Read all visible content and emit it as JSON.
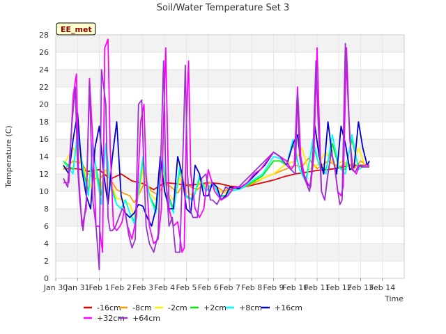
{
  "chart_data": {
    "type": "line",
    "title": "Soil/Water Temperature Set 3",
    "badge": "EE_met",
    "xlabel": "Time",
    "ylabel": "Temperature (C)",
    "xlim": [
      0,
      16
    ],
    "ylim": [
      0,
      28
    ],
    "x_tick_labels": [
      "Jan 30",
      "Jan 31",
      "Feb 1",
      "Feb 2",
      "Feb 3",
      "Feb 4",
      "Feb 5",
      "Feb 6",
      "Feb 7",
      "Feb 8",
      "Feb 9",
      "Feb 10",
      "Feb 11",
      "Feb 12",
      "Feb 13",
      "Feb 14"
    ],
    "y_ticks": [
      0,
      2,
      4,
      6,
      8,
      10,
      12,
      14,
      16,
      18,
      20,
      22,
      24,
      26,
      28
    ],
    "grid": true,
    "legend_position": "bottom",
    "series": [
      {
        "name": "-16cm",
        "color": "#e00000",
        "x": [
          0.35,
          1.0,
          1.5,
          2.0,
          2.5,
          3.0,
          3.5,
          4.0,
          4.5,
          5.0,
          5.5,
          6.0,
          6.5,
          7.0,
          7.5,
          8.0,
          8.5,
          9.0,
          9.5,
          10.0,
          10.5,
          11.0,
          11.5,
          12.0,
          12.5,
          13.0,
          13.5,
          14.0,
          14.4
        ],
        "y": [
          12.6,
          12.6,
          12.3,
          12.5,
          11.4,
          12.0,
          11.2,
          10.9,
          10.2,
          11.0,
          10.9,
          10.7,
          10.8,
          11.0,
          10.9,
          10.6,
          10.5,
          10.7,
          11.0,
          11.3,
          11.7,
          12.0,
          12.2,
          12.4,
          12.5,
          12.7,
          13.0,
          13.0,
          13.0
        ]
      },
      {
        "name": "-8cm",
        "color": "#ff9900",
        "x": [
          0.35,
          0.8,
          1.2,
          1.5,
          1.8,
          2.0,
          2.3,
          2.6,
          2.8,
          3.1,
          3.4,
          3.6,
          3.8,
          4.1,
          4.4,
          4.7,
          5.0,
          5.3,
          5.6,
          5.9,
          6.2,
          6.5,
          6.8,
          7.1,
          7.4,
          7.7,
          8.0,
          8.5,
          9.0,
          9.5,
          10.0,
          10.5,
          11.0,
          11.3,
          11.6,
          12.0,
          12.5,
          13.0,
          13.4,
          13.7,
          14.0,
          14.4
        ],
        "y": [
          12.5,
          13.5,
          13.2,
          12.0,
          11.5,
          11.3,
          12.5,
          11.0,
          10.2,
          9.8,
          9.5,
          8.7,
          9.5,
          11.2,
          10.0,
          9.6,
          11.0,
          10.5,
          9.8,
          11.0,
          10.5,
          10.2,
          10.8,
          11.0,
          10.5,
          10.0,
          10.3,
          10.5,
          10.8,
          11.5,
          12.0,
          12.5,
          13.0,
          12.8,
          13.8,
          12.6,
          13.5,
          12.8,
          13.3,
          12.6,
          13.5,
          12.8
        ]
      },
      {
        "name": "-2cm",
        "color": "#ffee00",
        "x": [
          0.35,
          0.8,
          1.0,
          1.3,
          1.6,
          1.8,
          2.0,
          2.3,
          2.6,
          2.8,
          3.1,
          3.4,
          3.6,
          3.8,
          4.0,
          4.3,
          4.6,
          4.9,
          5.1,
          5.4,
          5.7,
          6.0,
          6.3,
          6.6,
          6.9,
          7.2,
          7.5,
          7.8,
          8.0,
          8.5,
          9.0,
          9.5,
          10.0,
          10.5,
          11.0,
          11.3,
          11.6,
          12.0,
          12.4,
          12.8,
          13.2,
          13.6,
          13.9,
          14.2,
          14.4
        ],
        "y": [
          13.0,
          15.0,
          14.0,
          12.5,
          10.5,
          12.5,
          10.0,
          12.5,
          10.5,
          9.2,
          9.0,
          8.5,
          7.2,
          9.5,
          12.5,
          9.8,
          9.0,
          12.8,
          10.0,
          9.0,
          11.5,
          10.0,
          9.5,
          11.0,
          10.5,
          10.8,
          10.0,
          9.8,
          10.2,
          10.5,
          11.0,
          11.5,
          12.0,
          13.0,
          13.5,
          15.0,
          12.5,
          13.0,
          14.5,
          13.0,
          13.5,
          12.5,
          15.0,
          13.0,
          13.0
        ]
      },
      {
        "name": "+2cm",
        "color": "#00ee00",
        "x": [
          0.35,
          0.8,
          1.0,
          1.3,
          1.5,
          1.7,
          1.9,
          2.1,
          2.3,
          2.5,
          2.8,
          3.0,
          3.2,
          3.4,
          3.6,
          3.8,
          4.0,
          4.3,
          4.6,
          4.9,
          5.1,
          5.4,
          5.7,
          6.0,
          6.3,
          6.6,
          6.9,
          7.2,
          7.5,
          7.8,
          8.0,
          8.5,
          9.0,
          9.5,
          10.0,
          10.3,
          10.6,
          10.9,
          11.2,
          11.5,
          11.8,
          12.1,
          12.4,
          12.7,
          13.0,
          13.3,
          13.6,
          13.9,
          14.2,
          14.4
        ],
        "y": [
          13.5,
          12.5,
          16.5,
          12.0,
          10.0,
          15.0,
          12.0,
          9.5,
          15.5,
          11.0,
          8.5,
          8.0,
          9.0,
          7.5,
          6.5,
          10.0,
          13.5,
          9.5,
          8.0,
          13.5,
          10.0,
          8.0,
          12.5,
          9.5,
          9.0,
          11.5,
          10.0,
          11.0,
          9.5,
          9.5,
          10.0,
          10.3,
          11.0,
          11.8,
          13.5,
          13.5,
          13.0,
          15.5,
          12.5,
          11.5,
          15.5,
          13.0,
          12.5,
          15.5,
          12.8,
          12.5,
          16.0,
          12.8,
          13.0,
          13.0
        ]
      },
      {
        "name": "+8cm",
        "color": "#00ffff",
        "x": [
          0.35,
          0.8,
          1.0,
          1.3,
          1.5,
          1.7,
          1.9,
          2.1,
          2.3,
          2.5,
          2.8,
          3.0,
          3.2,
          3.4,
          3.6,
          3.8,
          4.0,
          4.3,
          4.6,
          4.9,
          5.1,
          5.4,
          5.7,
          6.0,
          6.3,
          6.6,
          6.9,
          7.2,
          7.5,
          7.8,
          8.0,
          8.5,
          9.0,
          9.5,
          10.0,
          10.3,
          10.6,
          10.9,
          11.2,
          11.5,
          11.8,
          12.1,
          12.4,
          12.7,
          13.0,
          13.3,
          13.6,
          13.9,
          14.2,
          14.4
        ],
        "y": [
          13.5,
          12.0,
          17.0,
          11.5,
          9.5,
          15.5,
          11.5,
          8.5,
          15.5,
          10.5,
          8.5,
          8.0,
          9.0,
          7.5,
          6.3,
          10.0,
          14.0,
          9.5,
          7.5,
          14.0,
          10.0,
          7.5,
          13.0,
          9.3,
          9.0,
          11.8,
          10.0,
          11.0,
          9.5,
          9.3,
          10.0,
          10.3,
          11.2,
          12.0,
          14.0,
          13.8,
          13.0,
          16.0,
          12.5,
          11.0,
          16.0,
          13.0,
          12.0,
          16.5,
          12.8,
          12.0,
          16.5,
          12.5,
          13.0,
          13.0
        ]
      },
      {
        "name": "+16cm",
        "color": "#0000cc",
        "x": [
          0.35,
          0.6,
          0.8,
          1.0,
          1.2,
          1.4,
          1.6,
          1.8,
          2.0,
          2.2,
          2.4,
          2.6,
          2.8,
          3.0,
          3.2,
          3.4,
          3.6,
          3.8,
          4.0,
          4.2,
          4.4,
          4.6,
          4.8,
          5.0,
          5.2,
          5.4,
          5.6,
          5.8,
          6.0,
          6.2,
          6.4,
          6.6,
          6.8,
          7.0,
          7.2,
          7.4,
          7.6,
          7.8,
          8.0,
          8.4,
          8.8,
          9.2,
          9.6,
          10.0,
          10.3,
          10.6,
          10.9,
          11.1,
          11.3,
          11.5,
          11.7,
          11.9,
          12.1,
          12.3,
          12.5,
          12.7,
          12.9,
          13.1,
          13.3,
          13.5,
          13.7,
          13.9,
          14.1,
          14.3,
          14.4
        ],
        "y": [
          13.0,
          12.0,
          16.0,
          19.0,
          12.5,
          9.5,
          8.0,
          15.0,
          17.5,
          12.0,
          8.5,
          14.0,
          18.0,
          9.5,
          7.5,
          7.0,
          7.5,
          8.5,
          8.3,
          7.0,
          6.0,
          8.0,
          14.0,
          10.0,
          8.0,
          8.0,
          14.0,
          12.0,
          8.0,
          7.5,
          13.0,
          12.0,
          9.5,
          9.5,
          11.0,
          10.5,
          9.0,
          9.5,
          10.5,
          10.3,
          11.0,
          12.0,
          13.0,
          14.5,
          14.0,
          13.0,
          15.5,
          16.5,
          12.5,
          11.0,
          10.5,
          17.5,
          14.0,
          12.0,
          18.0,
          14.0,
          12.0,
          17.5,
          15.5,
          12.5,
          12.8,
          18.0,
          15.0,
          13.0,
          13.5
        ]
      },
      {
        "name": "+32cm",
        "color": "#ff00ff",
        "x": [
          0.35,
          0.6,
          0.8,
          0.95,
          1.05,
          1.2,
          1.4,
          1.55,
          1.7,
          1.85,
          2.0,
          2.15,
          2.25,
          2.4,
          2.5,
          2.65,
          2.8,
          2.95,
          3.05,
          3.15,
          3.3,
          3.5,
          3.7,
          3.9,
          4.05,
          4.15,
          4.3,
          4.5,
          4.7,
          4.85,
          4.95,
          5.05,
          5.2,
          5.4,
          5.6,
          5.8,
          5.9,
          6.0,
          6.1,
          6.2,
          6.4,
          6.6,
          6.8,
          7.0,
          7.3,
          7.6,
          7.9,
          8.2,
          8.5,
          8.8,
          9.1,
          9.4,
          9.7,
          10.0,
          10.3,
          10.6,
          10.8,
          10.95,
          11.1,
          11.25,
          11.4,
          11.55,
          11.7,
          11.85,
          12.0,
          12.1,
          12.2,
          12.35,
          12.5,
          12.65,
          12.8,
          12.95,
          13.1,
          13.2,
          13.35,
          13.5,
          13.65,
          13.8,
          13.95,
          14.05,
          14.2,
          14.4
        ],
        "y": [
          11.0,
          11.0,
          21.0,
          23.5,
          12.0,
          6.0,
          8.0,
          23.0,
          16.0,
          6.0,
          6.0,
          3.0,
          26.5,
          27.5,
          15.0,
          6.0,
          5.5,
          6.0,
          6.5,
          8.0,
          6.0,
          4.5,
          7.0,
          18.0,
          20.0,
          12.0,
          6.0,
          4.0,
          4.5,
          8.0,
          18.0,
          26.5,
          8.0,
          6.0,
          6.5,
          3.0,
          3.5,
          18.0,
          25.0,
          12.0,
          8.0,
          7.0,
          8.0,
          12.5,
          10.0,
          9.0,
          9.5,
          10.5,
          10.5,
          11.0,
          12.0,
          12.5,
          13.5,
          14.5,
          14.0,
          13.5,
          12.5,
          13.0,
          22.0,
          14.0,
          12.0,
          11.0,
          10.5,
          14.0,
          26.5,
          18.0,
          10.0,
          9.0,
          12.0,
          14.5,
          13.0,
          10.0,
          9.5,
          10.5,
          26.5,
          16.0,
          12.5,
          12.0,
          13.0,
          12.8,
          13.0,
          13.0
        ]
      },
      {
        "name": "+64cm",
        "color": "#9933cc",
        "x": [
          0.35,
          0.55,
          0.75,
          0.9,
          1.0,
          1.1,
          1.25,
          1.4,
          1.55,
          1.7,
          1.85,
          2.0,
          2.1,
          2.2,
          2.3,
          2.4,
          2.5,
          2.6,
          2.75,
          2.9,
          3.05,
          3.2,
          3.35,
          3.5,
          3.65,
          3.8,
          3.95,
          4.05,
          4.15,
          4.3,
          4.5,
          4.7,
          4.85,
          4.95,
          5.05,
          5.2,
          5.35,
          5.5,
          5.7,
          5.85,
          5.95,
          6.05,
          6.15,
          6.3,
          6.5,
          6.7,
          6.9,
          7.0,
          7.1,
          7.2,
          7.4,
          7.6,
          7.8,
          8.0,
          8.4,
          8.8,
          9.2,
          9.6,
          10.0,
          10.3,
          10.6,
          10.8,
          11.0,
          11.1,
          11.2,
          11.35,
          11.5,
          11.65,
          11.8,
          11.95,
          12.05,
          12.2,
          12.35,
          12.5,
          12.65,
          12.8,
          12.95,
          13.05,
          13.15,
          13.3,
          13.45,
          13.6,
          13.75,
          13.9,
          14.05,
          14.2,
          14.4
        ],
        "y": [
          11.5,
          10.5,
          18.0,
          22.0,
          13.0,
          9.0,
          5.5,
          9.0,
          22.5,
          9.0,
          6.0,
          1.0,
          24.0,
          22.0,
          20.0,
          7.0,
          5.5,
          5.5,
          6.0,
          7.0,
          8.0,
          7.5,
          5.0,
          3.5,
          4.5,
          20.0,
          20.5,
          12.0,
          6.0,
          4.0,
          3.0,
          5.0,
          16.0,
          25.0,
          12.0,
          6.0,
          7.0,
          3.0,
          3.0,
          15.0,
          24.5,
          12.0,
          8.0,
          7.0,
          7.0,
          11.5,
          12.0,
          10.5,
          9.0,
          9.0,
          8.5,
          9.5,
          10.5,
          10.2,
          10.5,
          11.5,
          12.5,
          13.5,
          14.5,
          14.0,
          13.0,
          12.5,
          12.0,
          21.5,
          14.0,
          12.0,
          11.0,
          10.0,
          13.5,
          25.0,
          18.0,
          10.0,
          9.0,
          12.0,
          14.5,
          13.0,
          10.0,
          8.5,
          9.0,
          27.0,
          19.0,
          12.5,
          12.2,
          13.0,
          12.8,
          12.8,
          12.8
        ]
      }
    ]
  }
}
